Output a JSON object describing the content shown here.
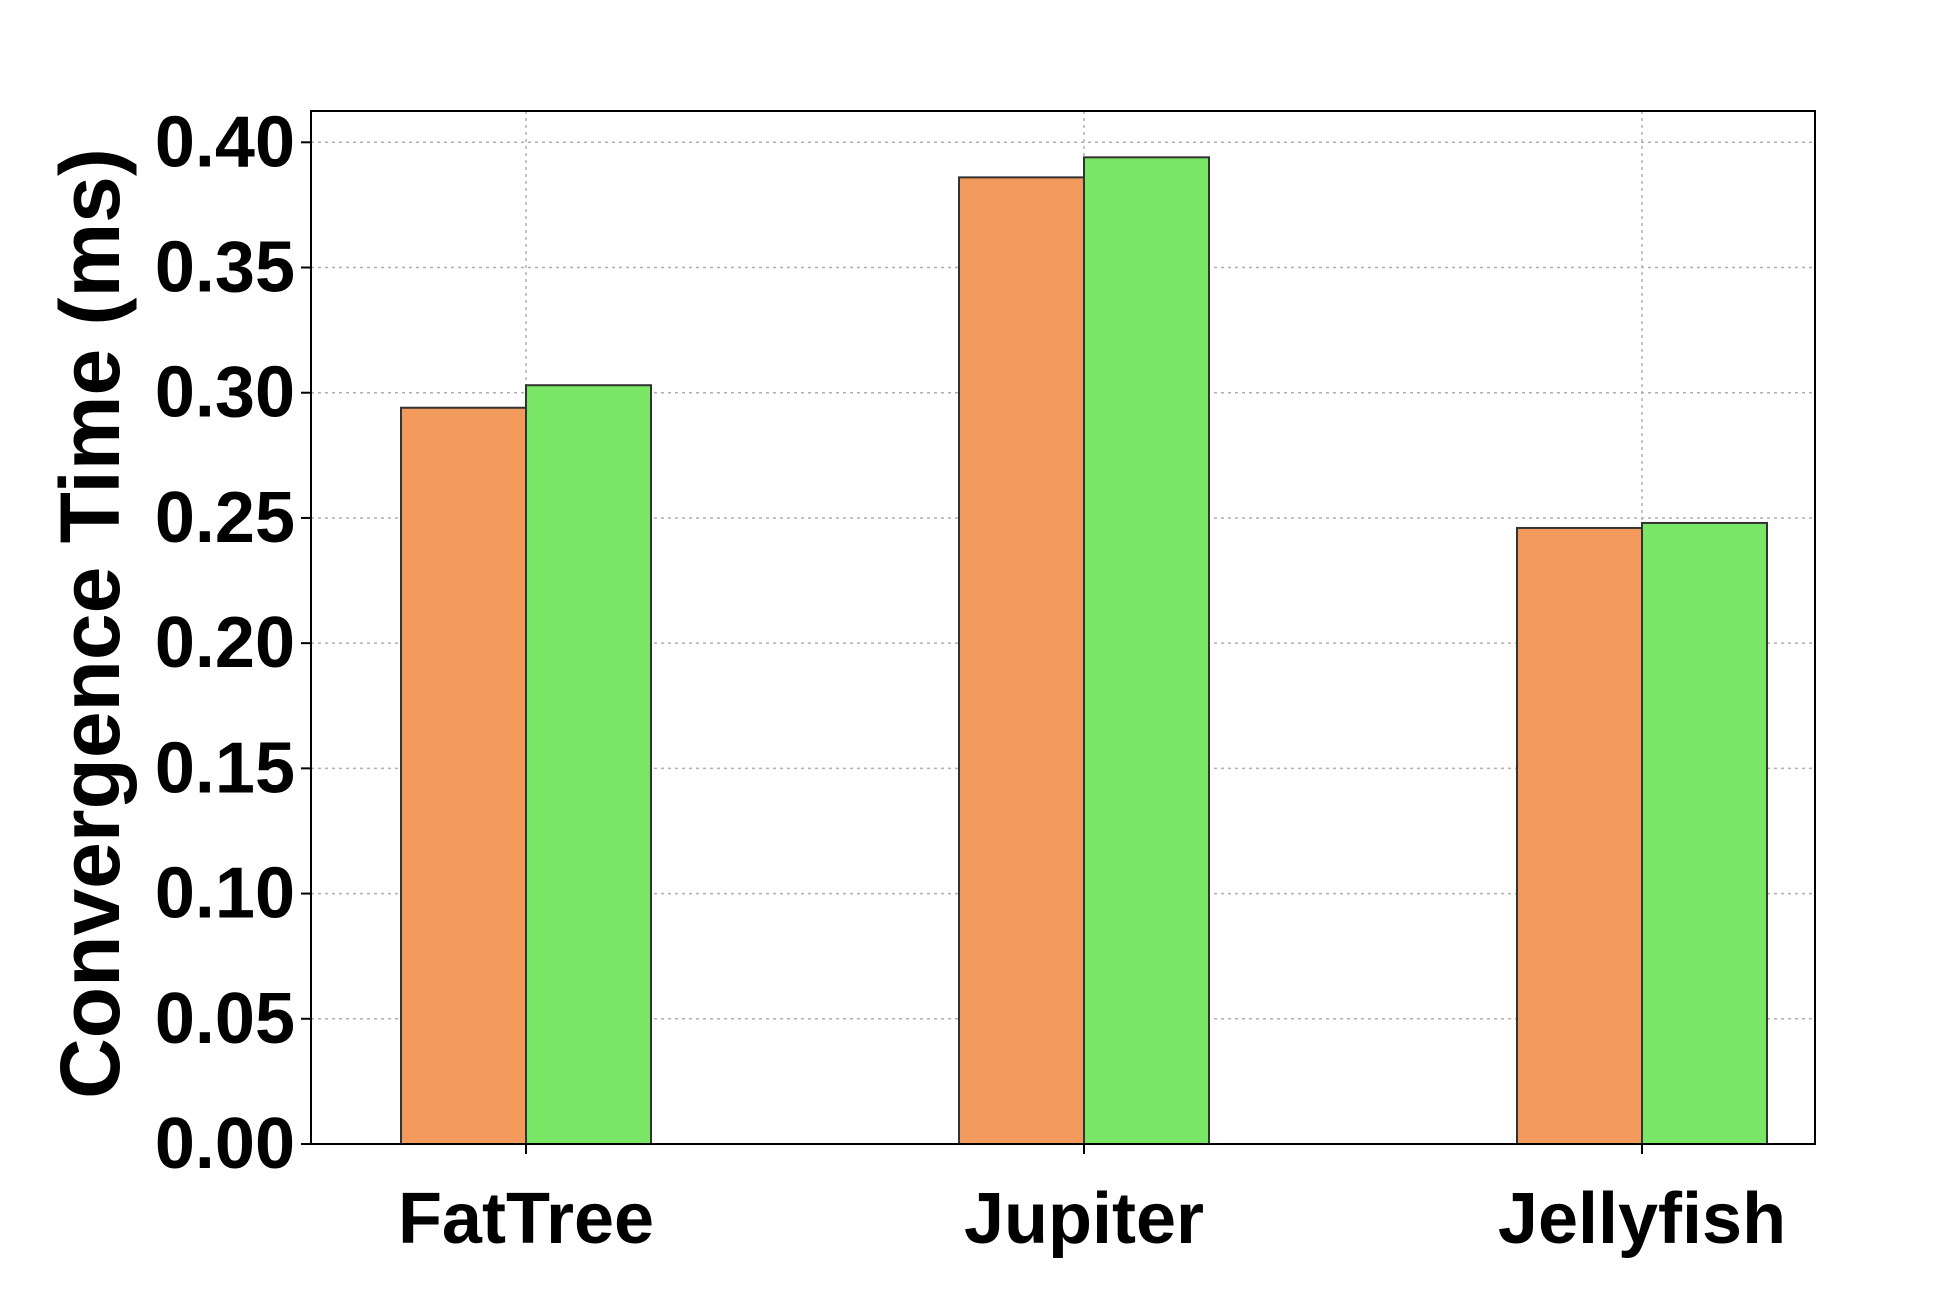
{
  "chart_data": {
    "type": "bar",
    "title": "",
    "xlabel": "",
    "ylabel": "Convergence Time (ms)",
    "categories": [
      "FatTree",
      "Jupiter",
      "Jellyfish"
    ],
    "series": [
      {
        "values": [
          0.294,
          0.386,
          0.246
        ],
        "color": "#f29a5b"
      },
      {
        "values": [
          0.303,
          0.394,
          0.248
        ],
        "color": "#79e765"
      }
    ],
    "ylim": [
      0,
      0.4125
    ],
    "yticks": [
      0.0,
      0.05,
      0.1,
      0.15,
      0.2,
      0.25,
      0.3,
      0.35,
      0.4
    ],
    "ytick_labels": [
      "0.00",
      "0.05",
      "0.10",
      "0.15",
      "0.20",
      "0.25",
      "0.30",
      "0.35",
      "0.40"
    ],
    "grid": true,
    "legend": "none",
    "colors": {
      "bar_edge": "#333333",
      "grid": "#b0b0b0",
      "axes": "#000000"
    }
  }
}
